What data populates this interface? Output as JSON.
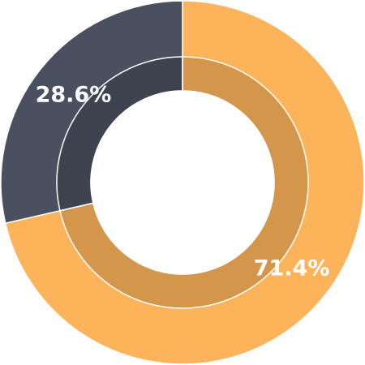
{
  "chart_data": {
    "type": "donut",
    "categories": [
      null,
      null
    ],
    "values": [
      71.4,
      28.6
    ],
    "value_labels": [
      "71.4%",
      "28.6%"
    ],
    "colors": [
      "#fdb35a",
      "#4a5060"
    ]
  }
}
